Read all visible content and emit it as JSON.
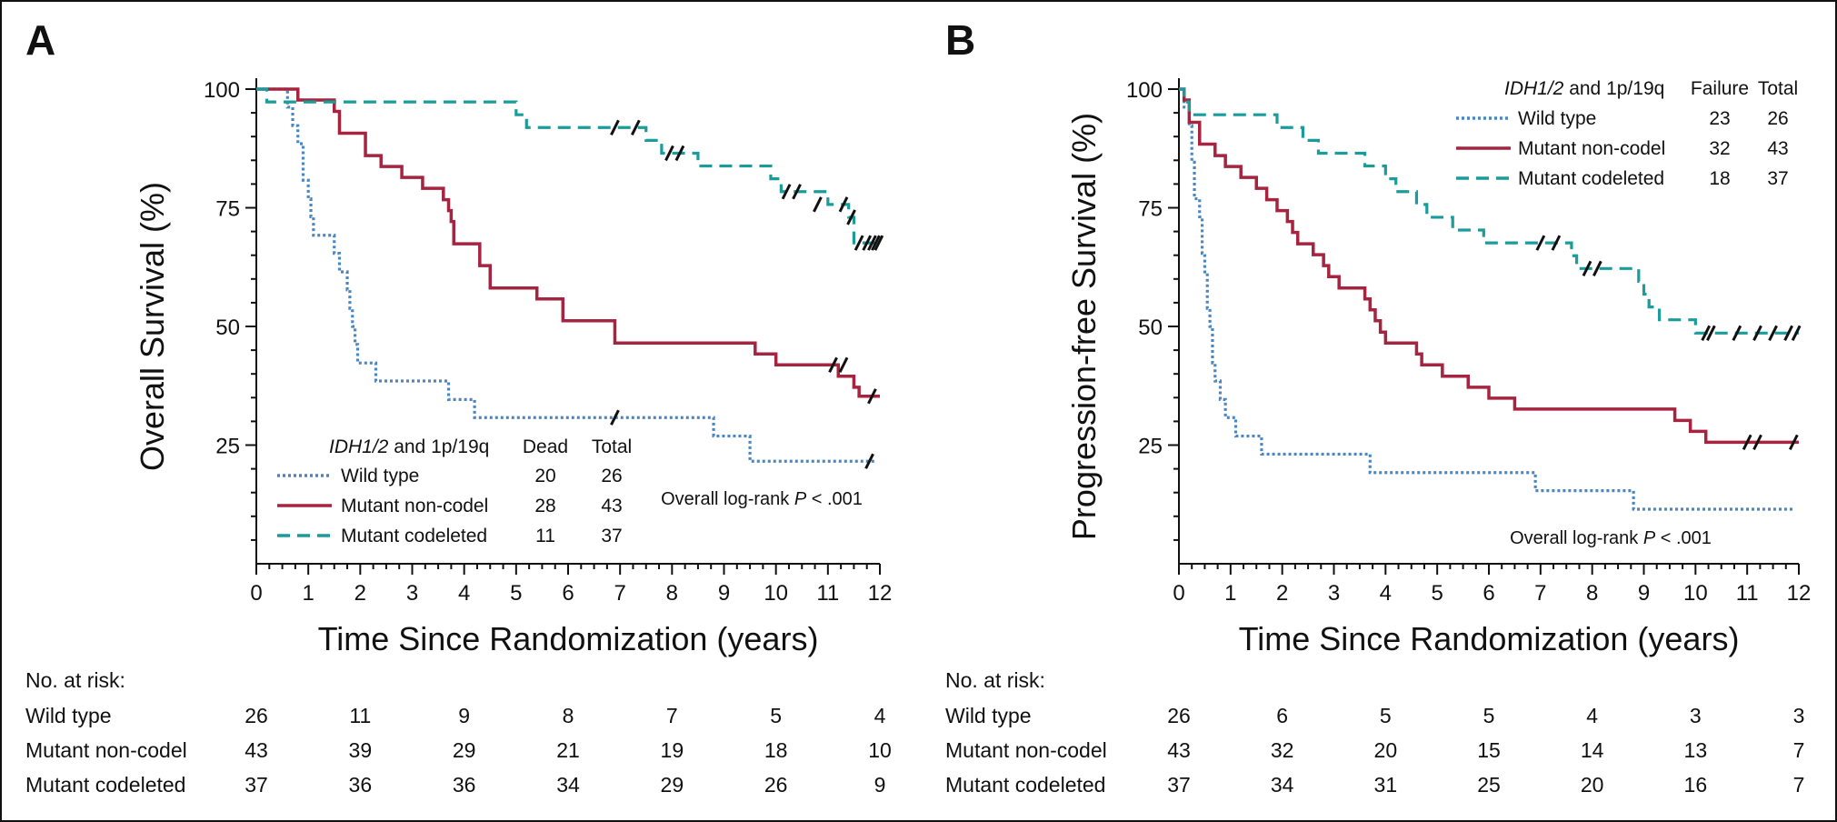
{
  "colors": {
    "wild_type": "#4a86c1",
    "mutant_noncodel": "#a6243f",
    "mutant_codeleted": "#1a9c9a",
    "axis": "#111111"
  },
  "chart_data": [
    {
      "type": "line",
      "panel_label": "A",
      "ylabel": "Overall Survival (%)",
      "xlabel": "Time Since Randomization (years)",
      "xlim": [
        0,
        12
      ],
      "ylim": [
        0,
        100
      ],
      "xticks": [
        "0",
        "1",
        "2",
        "3",
        "4",
        "5",
        "6",
        "7",
        "8",
        "9",
        "10",
        "11",
        "12"
      ],
      "yticks": [
        "25",
        "50",
        "75",
        "100"
      ],
      "legend": {
        "title_italic": "IDH1/2",
        "title_rest": " and 1p/19q",
        "col_events": "Dead",
        "col_total": "Total",
        "entries": [
          {
            "label": "Wild type",
            "events": "20",
            "total": "26"
          },
          {
            "label": "Mutant non-codel",
            "events": "28",
            "total": "43"
          },
          {
            "label": "Mutant codeleted",
            "events": "11",
            "total": "37"
          }
        ]
      },
      "pvalue": {
        "prefix": "Overall log-rank ",
        "p": "P",
        "suffix": " < .001"
      },
      "series": [
        {
          "name": "Wild type",
          "style": "dotted",
          "steps": [
            [
              0,
              100
            ],
            [
              0.6,
              96.2
            ],
            [
              0.7,
              92.3
            ],
            [
              0.8,
              88.5
            ],
            [
              0.9,
              80.8
            ],
            [
              1.0,
              76.9
            ],
            [
              1.05,
              73.1
            ],
            [
              1.1,
              69.2
            ],
            [
              1.5,
              65.4
            ],
            [
              1.6,
              61.5
            ],
            [
              1.75,
              57.7
            ],
            [
              1.8,
              53.8
            ],
            [
              1.85,
              50
            ],
            [
              1.9,
              46.2
            ],
            [
              1.95,
              42.3
            ],
            [
              2.3,
              38.5
            ],
            [
              3.7,
              34.6
            ],
            [
              4.2,
              30.8
            ],
            [
              8.8,
              26.9
            ],
            [
              9.5,
              21.6
            ],
            [
              11.9,
              21.6
            ]
          ],
          "censors": [
            [
              6.9,
              30.8
            ],
            [
              11.8,
              21.6
            ]
          ]
        },
        {
          "name": "Mutant non-codel",
          "style": "solid",
          "steps": [
            [
              0,
              100
            ],
            [
              0.8,
              97.7
            ],
            [
              1.5,
              95.3
            ],
            [
              1.6,
              90.7
            ],
            [
              2.1,
              86
            ],
            [
              2.4,
              83.7
            ],
            [
              2.8,
              81.4
            ],
            [
              3.2,
              79.1
            ],
            [
              3.6,
              76.7
            ],
            [
              3.7,
              74.4
            ],
            [
              3.75,
              72.1
            ],
            [
              3.8,
              67.4
            ],
            [
              4.3,
              62.8
            ],
            [
              4.5,
              58.1
            ],
            [
              5.4,
              55.8
            ],
            [
              5.9,
              51.2
            ],
            [
              6.9,
              46.5
            ],
            [
              9.6,
              44.2
            ],
            [
              10.0,
              41.9
            ],
            [
              11.2,
              39.5
            ],
            [
              11.5,
              37.2
            ],
            [
              11.6,
              35.3
            ],
            [
              12.0,
              35.3
            ]
          ],
          "censors": [
            [
              11.1,
              41.9
            ],
            [
              11.3,
              41.9
            ],
            [
              11.85,
              35.3
            ]
          ]
        },
        {
          "name": "Mutant codeleted",
          "style": "dashed",
          "steps": [
            [
              0,
              100
            ],
            [
              0.2,
              97.3
            ],
            [
              5.0,
              94.6
            ],
            [
              5.2,
              91.9
            ],
            [
              7.5,
              89.2
            ],
            [
              7.8,
              86.5
            ],
            [
              8.5,
              83.8
            ],
            [
              9.0,
              83.8
            ],
            [
              9.9,
              81.1
            ],
            [
              10.1,
              78.4
            ],
            [
              11.0,
              75.7
            ],
            [
              11.4,
              73
            ],
            [
              11.5,
              67.6
            ],
            [
              12.0,
              67.6
            ]
          ],
          "censors": [
            [
              6.9,
              91.9
            ],
            [
              7.3,
              91.9
            ],
            [
              7.95,
              86.5
            ],
            [
              8.15,
              86.5
            ],
            [
              10.2,
              78.4
            ],
            [
              10.4,
              78.4
            ],
            [
              10.8,
              75.7
            ],
            [
              11.3,
              75.7
            ],
            [
              11.45,
              73
            ],
            [
              11.6,
              67.6
            ],
            [
              11.75,
              67.6
            ],
            [
              11.85,
              67.6
            ],
            [
              11.92,
              67.6
            ],
            [
              11.98,
              67.6
            ]
          ]
        }
      ],
      "risk_table": {
        "title": "No. at risk:",
        "times": [
          0,
          2,
          4,
          6,
          8,
          10,
          12
        ],
        "rows": [
          {
            "label": "Wild type",
            "values": [
              "26",
              "11",
              "9",
              "8",
              "7",
              "5",
              "4"
            ]
          },
          {
            "label": "Mutant non-codel",
            "values": [
              "43",
              "39",
              "29",
              "21",
              "19",
              "18",
              "10"
            ]
          },
          {
            "label": "Mutant codeleted",
            "values": [
              "37",
              "36",
              "36",
              "34",
              "29",
              "26",
              "9"
            ]
          }
        ]
      }
    },
    {
      "type": "line",
      "panel_label": "B",
      "ylabel": "Progression-free Survival (%)",
      "xlabel": "Time Since Randomization (years)",
      "xlim": [
        0,
        12
      ],
      "ylim": [
        0,
        100
      ],
      "xticks": [
        "0",
        "1",
        "2",
        "3",
        "4",
        "5",
        "6",
        "7",
        "8",
        "9",
        "10",
        "11",
        "12"
      ],
      "yticks": [
        "25",
        "50",
        "75",
        "100"
      ],
      "legend": {
        "title_italic": "IDH1/2",
        "title_rest": " and 1p/19q",
        "col_events": "Failure",
        "col_total": "Total",
        "entries": [
          {
            "label": "Wild type",
            "events": "23",
            "total": "26"
          },
          {
            "label": "Mutant non-codel",
            "events": "32",
            "total": "43"
          },
          {
            "label": "Mutant codeleted",
            "events": "18",
            "total": "37"
          }
        ]
      },
      "pvalue": {
        "prefix": "Overall log-rank ",
        "p": "P",
        "suffix": " < .001"
      },
      "series": [
        {
          "name": "Wild type",
          "style": "dotted",
          "steps": [
            [
              0,
              100
            ],
            [
              0.1,
              96.2
            ],
            [
              0.2,
              92.3
            ],
            [
              0.25,
              84.6
            ],
            [
              0.3,
              76.9
            ],
            [
              0.4,
              73.1
            ],
            [
              0.45,
              65.4
            ],
            [
              0.5,
              61.5
            ],
            [
              0.55,
              53.8
            ],
            [
              0.6,
              50
            ],
            [
              0.65,
              42.3
            ],
            [
              0.7,
              38.5
            ],
            [
              0.8,
              34.6
            ],
            [
              0.9,
              30.8
            ],
            [
              1.1,
              26.9
            ],
            [
              1.6,
              23.1
            ],
            [
              3.7,
              19.2
            ],
            [
              6.9,
              15.4
            ],
            [
              8.8,
              11.5
            ],
            [
              11.9,
              11.5
            ]
          ],
          "censors": []
        },
        {
          "name": "Mutant non-codel",
          "style": "solid",
          "steps": [
            [
              0,
              100
            ],
            [
              0.1,
              97.7
            ],
            [
              0.2,
              93
            ],
            [
              0.4,
              88.4
            ],
            [
              0.7,
              86
            ],
            [
              0.9,
              83.7
            ],
            [
              1.2,
              81.4
            ],
            [
              1.5,
              79.1
            ],
            [
              1.7,
              76.7
            ],
            [
              1.9,
              74.4
            ],
            [
              2.1,
              72.1
            ],
            [
              2.2,
              69.8
            ],
            [
              2.3,
              67.4
            ],
            [
              2.6,
              65.1
            ],
            [
              2.8,
              62.8
            ],
            [
              2.9,
              60.5
            ],
            [
              3.1,
              58.1
            ],
            [
              3.6,
              55.8
            ],
            [
              3.7,
              53.5
            ],
            [
              3.8,
              51.2
            ],
            [
              3.9,
              48.8
            ],
            [
              4.0,
              46.5
            ],
            [
              4.6,
              44.2
            ],
            [
              4.7,
              41.9
            ],
            [
              5.1,
              39.5
            ],
            [
              5.6,
              37.2
            ],
            [
              6.0,
              34.9
            ],
            [
              6.5,
              32.6
            ],
            [
              9.6,
              30.2
            ],
            [
              9.9,
              27.9
            ],
            [
              10.2,
              25.6
            ],
            [
              12.0,
              25.6
            ]
          ],
          "censors": [
            [
              11.0,
              25.6
            ],
            [
              11.2,
              25.6
            ],
            [
              11.9,
              25.6
            ]
          ]
        },
        {
          "name": "Mutant codeleted",
          "style": "dashed",
          "steps": [
            [
              0,
              100
            ],
            [
              0.1,
              97.3
            ],
            [
              0.2,
              94.6
            ],
            [
              1.9,
              91.9
            ],
            [
              2.4,
              89.2
            ],
            [
              2.7,
              86.5
            ],
            [
              3.6,
              83.8
            ],
            [
              4.0,
              81.1
            ],
            [
              4.2,
              78.4
            ],
            [
              4.6,
              75.7
            ],
            [
              4.8,
              73
            ],
            [
              5.3,
              70.3
            ],
            [
              5.9,
              67.6
            ],
            [
              7.6,
              64.9
            ],
            [
              7.7,
              62.2
            ],
            [
              8.9,
              59.5
            ],
            [
              9.0,
              56.8
            ],
            [
              9.1,
              54.1
            ],
            [
              9.3,
              51.4
            ],
            [
              10.0,
              48.6
            ],
            [
              12.0,
              48.6
            ]
          ],
          "censors": [
            [
              7.0,
              67.6
            ],
            [
              7.3,
              67.6
            ],
            [
              7.9,
              62.2
            ],
            [
              8.1,
              62.2
            ],
            [
              10.2,
              48.6
            ],
            [
              10.3,
              48.6
            ],
            [
              10.8,
              48.6
            ],
            [
              11.2,
              48.6
            ],
            [
              11.5,
              48.6
            ],
            [
              11.8,
              48.6
            ],
            [
              11.95,
              48.6
            ]
          ]
        }
      ],
      "risk_table": {
        "title": "No. at risk:",
        "times": [
          0,
          2,
          4,
          6,
          8,
          10,
          12
        ],
        "rows": [
          {
            "label": "Wild type",
            "values": [
              "26",
              "6",
              "5",
              "5",
              "4",
              "3",
              "3"
            ]
          },
          {
            "label": "Mutant non-codel",
            "values": [
              "43",
              "32",
              "20",
              "15",
              "14",
              "13",
              "7"
            ]
          },
          {
            "label": "Mutant codeleted",
            "values": [
              "37",
              "34",
              "31",
              "25",
              "20",
              "16",
              "7"
            ]
          }
        ]
      }
    }
  ]
}
